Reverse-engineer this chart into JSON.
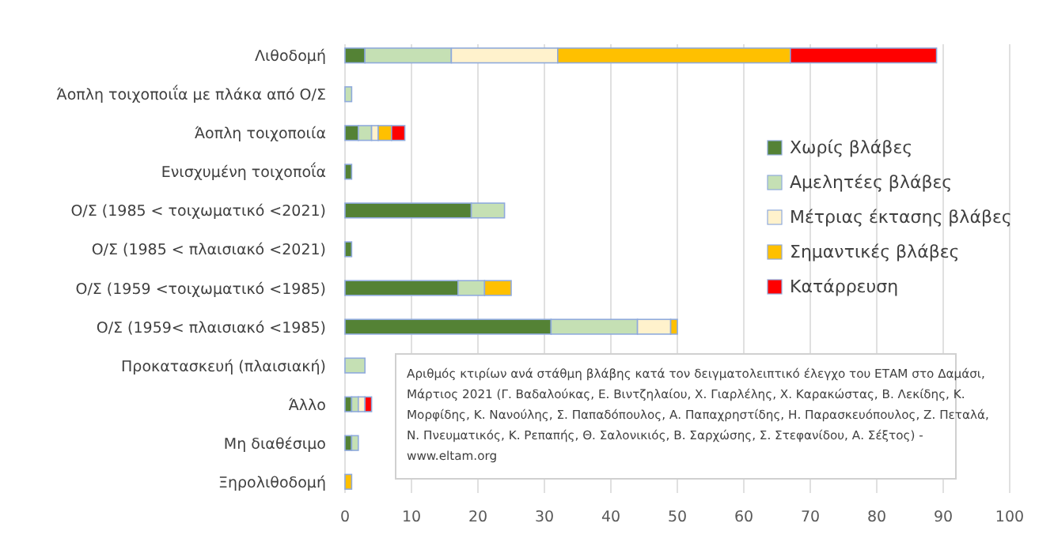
{
  "chart_data": {
    "type": "bar",
    "orientation": "horizontal",
    "stacked": true,
    "categories": [
      "Λιθοδομή",
      "Άοπλη τοιχοποιΐα με πλάκα από Ο/Σ",
      "Άοπλη τοιχοποιία",
      "Ενισχυμένη τοιχοποΐα",
      "Ο/Σ (1985 < τοιχωματικό <2021)",
      "Ο/Σ (1985 < πλαισιακό <2021)",
      "Ο/Σ (1959 <τοιχωματικό <1985)",
      "Ο/Σ (1959< πλαισιακό <1985)",
      "Προκατασκευή (πλαισιακή)",
      "Άλλο",
      "Μη διαθέσιμο",
      "Ξηρολιθοδομή"
    ],
    "series": [
      {
        "name": "Χωρίς βλάβες",
        "color": "#548235",
        "values": [
          3,
          0,
          2,
          1,
          19,
          1,
          17,
          31,
          0,
          1,
          1,
          0
        ]
      },
      {
        "name": "Αμελητέες βλάβες",
        "color": "#c5e0b4",
        "values": [
          13,
          1,
          2,
          0,
          5,
          0,
          4,
          13,
          3,
          1,
          1,
          0
        ]
      },
      {
        "name": "Μέτριας έκτασης βλάβες",
        "color": "#fff2cc",
        "values": [
          16,
          0,
          1,
          0,
          0,
          0,
          0,
          5,
          0,
          1,
          0,
          0
        ]
      },
      {
        "name": "Σημαντικές βλάβες",
        "color": "#ffc000",
        "values": [
          35,
          0,
          2,
          0,
          0,
          0,
          4,
          1,
          0,
          0,
          0,
          1
        ]
      },
      {
        "name": "Κατάρρευση",
        "color": "#ff0000",
        "values": [
          22,
          0,
          2,
          0,
          0,
          0,
          0,
          0,
          0,
          1,
          0,
          0
        ]
      }
    ],
    "xlim": [
      0,
      100
    ],
    "xticks": [
      0,
      10,
      20,
      30,
      40,
      50,
      60,
      70,
      80,
      90,
      100
    ],
    "grid": "x",
    "legend": "right",
    "annotations": [
      "Αριθμός κτιρίων ανά στάθμη βλάβης κατά τον δειγματολειπτικό έλεγχο του ΕΤΑΜ στο Δαμάσι, Μάρτιος 2021 (Γ. Βαδαλούκας, Ε. Βιντζηλαίου, Χ. Γιαρλέλης, Χ. Καρακώστας, Β. Λεκίδης, Κ. Μορφίδης, Κ. Νανούλης, Σ. Παπαδόπουλος, Α. Παπαχρηστίδης, Η. Παρασκευόπουλος, Ζ. Πεταλά, Ν. Πνευματικός, Κ. Ρεπαπής, Θ. Σαλονικιός, Β. Σαρχώσης, Σ. Στεφανίδου, Α. Σέξτος) - www.eltam.org"
    ]
  }
}
